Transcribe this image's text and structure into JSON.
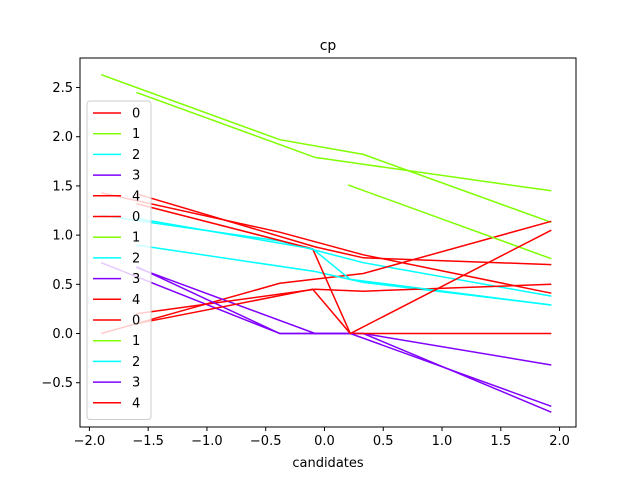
{
  "chart_data": {
    "type": "line",
    "title": "cp",
    "xlabel": "candidates",
    "ylabel": "",
    "xlim": [
      -2.08,
      2.14
    ],
    "ylim": [
      -0.95,
      2.8
    ],
    "xticks": [
      -2.0,
      -1.5,
      -1.0,
      -0.5,
      0.0,
      0.5,
      1.0,
      1.5,
      2.0
    ],
    "xtick_labels": [
      "−2.0",
      "−1.5",
      "−1.0",
      "−0.5",
      "0.0",
      "0.5",
      "1.0",
      "1.5",
      "2.0"
    ],
    "yticks": [
      -0.5,
      0.0,
      0.5,
      1.0,
      1.5,
      2.0,
      2.5
    ],
    "ytick_labels": [
      "−0.5",
      "0.0",
      "0.5",
      "1.0",
      "1.5",
      "2.0",
      "2.5"
    ],
    "grid": false,
    "legend_position": "left",
    "colors": {
      "0": "#ff0000",
      "1": "#80ff00",
      "2": "#00ffff",
      "3": "#8000ff",
      "4": "#ff0000"
    },
    "series": [
      {
        "name": "0",
        "color": "#ff0000",
        "x": [
          -1.9,
          -0.38,
          0.33,
          1.93
        ],
        "y": [
          1.43,
          1.03,
          0.8,
          0.41
        ]
      },
      {
        "name": "1",
        "color": "#80ff00",
        "x": [
          -1.9,
          -0.38,
          0.33,
          1.93
        ],
        "y": [
          2.63,
          1.97,
          1.82,
          1.13
        ]
      },
      {
        "name": "2",
        "color": "#00ffff",
        "x": [
          -1.9,
          -0.38,
          0.33,
          1.93
        ],
        "y": [
          1.2,
          0.94,
          0.72,
          0.38
        ]
      },
      {
        "name": "3",
        "color": "#8000ff",
        "x": [
          -1.9,
          -0.38,
          0.33,
          1.93
        ],
        "y": [
          0.72,
          0.0,
          0.0,
          -0.8
        ]
      },
      {
        "name": "4",
        "color": "#ff0000",
        "x": [
          -1.9,
          -0.38,
          0.33,
          1.93
        ],
        "y": [
          0.0,
          0.51,
          0.61,
          1.14
        ]
      },
      {
        "name": "0",
        "color": "#ff0000",
        "x": [
          -1.6,
          -0.08,
          0.33,
          1.93
        ],
        "y": [
          1.42,
          0.88,
          0.77,
          0.7
        ]
      },
      {
        "name": "1",
        "color": "#80ff00",
        "x": [
          -1.6,
          -0.08,
          0.33,
          1.93
        ],
        "y": [
          2.45,
          1.79,
          1.72,
          1.45
        ]
      },
      {
        "name": "2",
        "color": "#00ffff",
        "x": [
          -1.6,
          -0.08,
          0.33,
          1.93
        ],
        "y": [
          0.9,
          0.63,
          0.52,
          0.29
        ]
      },
      {
        "name": "3",
        "color": "#8000ff",
        "x": [
          -1.6,
          -0.08,
          0.33,
          1.93
        ],
        "y": [
          0.67,
          0.0,
          0.0,
          -0.32
        ]
      },
      {
        "name": "4",
        "color": "#ff0000",
        "x": [
          -1.6,
          -0.08,
          0.33,
          1.93
        ],
        "y": [
          0.2,
          0.45,
          0.43,
          0.5
        ]
      },
      {
        "name": "0",
        "color": "#ff0000",
        "x": [
          -1.6,
          -0.1,
          0.22,
          1.93
        ],
        "y": [
          1.32,
          0.86,
          0.0,
          0.0
        ]
      },
      {
        "name": "1",
        "color": "#80ff00",
        "x": [
          0.2,
          1.93
        ],
        "y": [
          1.51,
          0.76
        ]
      },
      {
        "name": "2",
        "color": "#00ffff",
        "x": [
          -1.6,
          -0.1,
          0.22,
          1.93
        ],
        "y": [
          1.17,
          0.86,
          0.55,
          0.29
        ]
      },
      {
        "name": "3",
        "color": "#8000ff",
        "x": [
          -1.6,
          -0.38,
          0.22,
          1.93
        ],
        "y": [
          0.68,
          0.0,
          0.0,
          -0.74
        ]
      },
      {
        "name": "4",
        "color": "#ff0000",
        "x": [
          -1.6,
          -0.1,
          0.22,
          1.93
        ],
        "y": [
          0.1,
          0.45,
          0.0,
          1.05
        ]
      }
    ]
  }
}
